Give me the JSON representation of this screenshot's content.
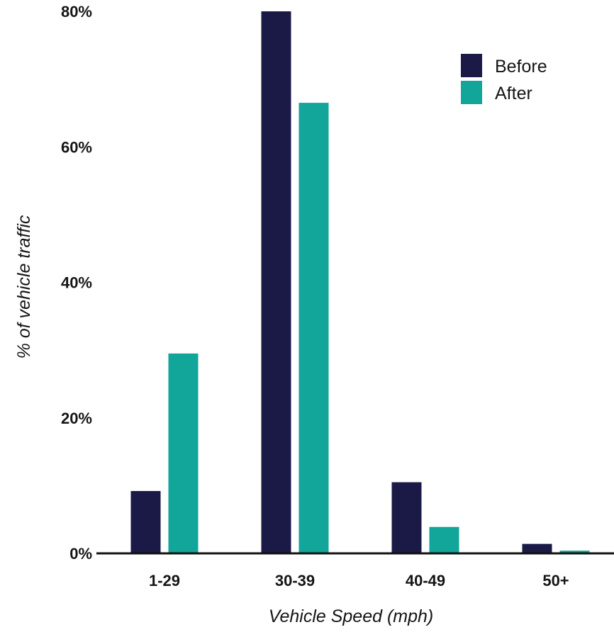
{
  "chart_data": {
    "type": "bar",
    "title": "",
    "xlabel": "Vehicle Speed (mph)",
    "ylabel": "% of vehicle traffic",
    "categories": [
      "1-29",
      "30-39",
      "40-49",
      "50+"
    ],
    "series": [
      {
        "name": "Before",
        "color": "#1b1a47",
        "values": [
          9.2,
          80.0,
          10.5,
          1.4
        ]
      },
      {
        "name": "After",
        "color": "#12a599",
        "values": [
          29.5,
          66.5,
          3.9,
          0.4
        ]
      }
    ],
    "ylim": [
      0,
      80
    ],
    "yticks": [
      "0%",
      "20%",
      "40%",
      "60%",
      "80%"
    ],
    "grid": false,
    "legend_position": "top-right"
  }
}
